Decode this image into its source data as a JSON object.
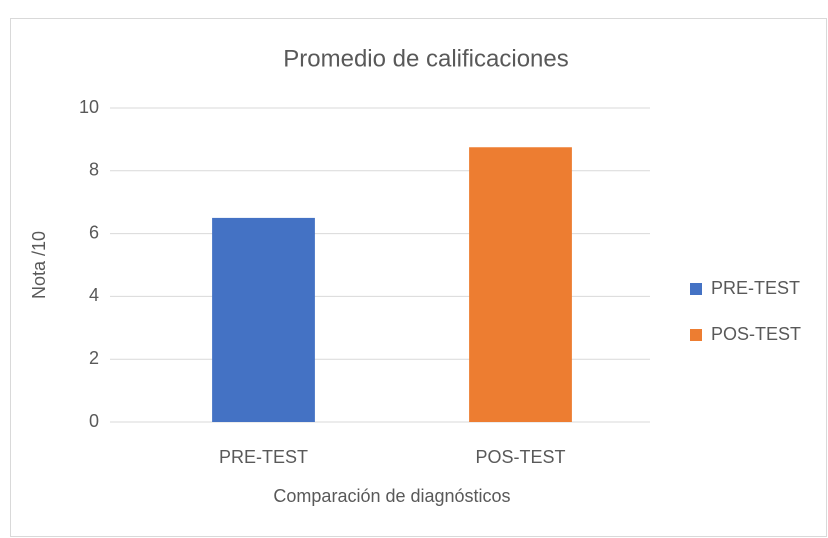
{
  "chart_data": {
    "type": "bar",
    "title": "Promedio de calificaciones",
    "x_label": "Comparación de diagnósticos",
    "y_label": "Nota /10",
    "categories": [
      "PRE-TEST",
      "POS-TEST"
    ],
    "values": [
      6.5,
      8.75
    ],
    "colors": [
      "#4472c4",
      "#ed7d31"
    ],
    "ylim": [
      0,
      10
    ],
    "yticks": [
      0,
      2,
      4,
      6,
      8,
      10
    ],
    "grid": true,
    "legend": "right"
  }
}
